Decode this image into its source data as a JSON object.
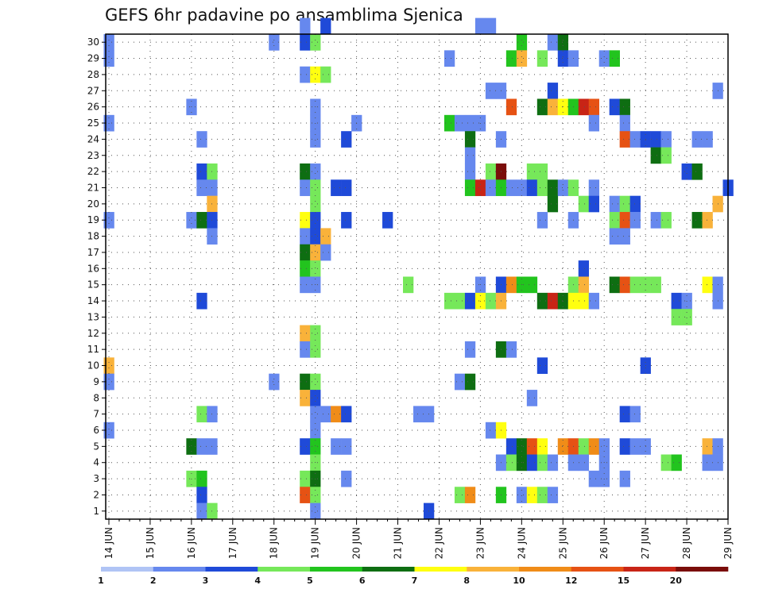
{
  "chart_data": {
    "type": "heatmap",
    "title": "GEFS 6hr padavine po ansamblima Sjenica",
    "xlabel": "",
    "ylabel": "",
    "x_ticks": [
      "14 JUN",
      "15 JUN",
      "16 JUN",
      "17 JUN",
      "18 JUN",
      "19 JUN",
      "20 JUN",
      "21 JUN",
      "22 JUN",
      "23 JUN",
      "24 JUN",
      "25 JUN",
      "26 JUN",
      "27 JUN",
      "28 JUN",
      "29 JUN"
    ],
    "xlim": [
      0,
      60
    ],
    "y_ticks": [
      "1",
      "2",
      "3",
      "4",
      "5",
      "6",
      "7",
      "8",
      "9",
      "10",
      "11",
      "12",
      "13",
      "14",
      "15",
      "16",
      "17",
      "18",
      "19",
      "20",
      "21",
      "22",
      "23",
      "24",
      "25",
      "26",
      "27",
      "28",
      "29",
      "30"
    ],
    "ylim": [
      0.5,
      30.5
    ],
    "grid": true,
    "colorbar": {
      "labels": [
        "1",
        "2",
        "3",
        "4",
        "5",
        "6",
        "7",
        "8",
        "10",
        "12",
        "15",
        "20"
      ],
      "colors": [
        "#b0c4f5",
        "#6688ee",
        "#1f4ad8",
        "#76e85a",
        "#22c41e",
        "#0e6e12",
        "#ffff10",
        "#f9b23a",
        "#f08c18",
        "#e65214",
        "#c82416",
        "#7a0d0a"
      ]
    },
    "cell_format": "[member, step, class]",
    "cells": [
      [
        30,
        19,
        1
      ],
      [
        30,
        21,
        2
      ],
      [
        30,
        36,
        1
      ],
      [
        30,
        37,
        1
      ],
      [
        29,
        0,
        1
      ],
      [
        29,
        16,
        1
      ],
      [
        29,
        19,
        2
      ],
      [
        29,
        20,
        3
      ],
      [
        29,
        40,
        4
      ],
      [
        29,
        43,
        1
      ],
      [
        29,
        44,
        5
      ],
      [
        28,
        0,
        1
      ],
      [
        28,
        33,
        1
      ],
      [
        28,
        39,
        4
      ],
      [
        28,
        40,
        7
      ],
      [
        28,
        42,
        3
      ],
      [
        28,
        44,
        2
      ],
      [
        28,
        45,
        1
      ],
      [
        28,
        48,
        1
      ],
      [
        28,
        49,
        4
      ],
      [
        27,
        19,
        1
      ],
      [
        27,
        20,
        6
      ],
      [
        27,
        21,
        3
      ],
      [
        26,
        37,
        1
      ],
      [
        26,
        38,
        1
      ],
      [
        26,
        43,
        2
      ],
      [
        26,
        59,
        1
      ],
      [
        25,
        8,
        1
      ],
      [
        25,
        20,
        1
      ],
      [
        25,
        39,
        9
      ],
      [
        25,
        42,
        5
      ],
      [
        25,
        43,
        7
      ],
      [
        25,
        44,
        6
      ],
      [
        25,
        45,
        4
      ],
      [
        25,
        46,
        10
      ],
      [
        25,
        47,
        9
      ],
      [
        25,
        49,
        2
      ],
      [
        25,
        50,
        5
      ],
      [
        24,
        0,
        1
      ],
      [
        24,
        20,
        1
      ],
      [
        24,
        24,
        1
      ],
      [
        24,
        33,
        4
      ],
      [
        24,
        34,
        1
      ],
      [
        24,
        35,
        1
      ],
      [
        24,
        36,
        1
      ],
      [
        24,
        47,
        1
      ],
      [
        24,
        50,
        1
      ],
      [
        23,
        9,
        1
      ],
      [
        23,
        20,
        1
      ],
      [
        23,
        23,
        2
      ],
      [
        23,
        35,
        5
      ],
      [
        23,
        38,
        1
      ],
      [
        23,
        50,
        9
      ],
      [
        23,
        51,
        1
      ],
      [
        23,
        52,
        2
      ],
      [
        23,
        53,
        2
      ],
      [
        23,
        54,
        1
      ],
      [
        23,
        57,
        1
      ],
      [
        23,
        58,
        1
      ],
      [
        22,
        35,
        1
      ],
      [
        22,
        53,
        5
      ],
      [
        22,
        54,
        3
      ],
      [
        21,
        9,
        2
      ],
      [
        21,
        10,
        3
      ],
      [
        21,
        19,
        5
      ],
      [
        21,
        20,
        1
      ],
      [
        21,
        35,
        1
      ],
      [
        21,
        37,
        3
      ],
      [
        21,
        38,
        11
      ],
      [
        21,
        41,
        3
      ],
      [
        21,
        42,
        3
      ],
      [
        21,
        56,
        2
      ],
      [
        21,
        57,
        5
      ],
      [
        20,
        9,
        1
      ],
      [
        20,
        10,
        1
      ],
      [
        20,
        19,
        1
      ],
      [
        20,
        20,
        3
      ],
      [
        20,
        22,
        2
      ],
      [
        20,
        23,
        2
      ],
      [
        20,
        35,
        4
      ],
      [
        20,
        36,
        10
      ],
      [
        20,
        37,
        1
      ],
      [
        20,
        38,
        4
      ],
      [
        20,
        39,
        1
      ],
      [
        20,
        40,
        1
      ],
      [
        20,
        41,
        2
      ],
      [
        20,
        42,
        3
      ],
      [
        20,
        43,
        5
      ],
      [
        20,
        44,
        1
      ],
      [
        20,
        45,
        3
      ],
      [
        20,
        47,
        1
      ],
      [
        20,
        60,
        2
      ],
      [
        19,
        10,
        7
      ],
      [
        19,
        20,
        3
      ],
      [
        19,
        43,
        5
      ],
      [
        19,
        46,
        3
      ],
      [
        19,
        47,
        2
      ],
      [
        19,
        49,
        1
      ],
      [
        19,
        50,
        3
      ],
      [
        19,
        51,
        2
      ],
      [
        19,
        59,
        7
      ],
      [
        18,
        0,
        1
      ],
      [
        18,
        8,
        1
      ],
      [
        18,
        9,
        5
      ],
      [
        18,
        10,
        2
      ],
      [
        18,
        19,
        6
      ],
      [
        18,
        20,
        2
      ],
      [
        18,
        23,
        2
      ],
      [
        18,
        27,
        2
      ],
      [
        18,
        42,
        1
      ],
      [
        18,
        45,
        1
      ],
      [
        18,
        49,
        3
      ],
      [
        18,
        50,
        9
      ],
      [
        18,
        51,
        1
      ],
      [
        18,
        53,
        1
      ],
      [
        18,
        54,
        3
      ],
      [
        18,
        57,
        5
      ],
      [
        18,
        58,
        7
      ],
      [
        17,
        10,
        1
      ],
      [
        17,
        19,
        1
      ],
      [
        17,
        20,
        2
      ],
      [
        17,
        21,
        7
      ],
      [
        17,
        49,
        1
      ],
      [
        17,
        50,
        1
      ],
      [
        16,
        19,
        5
      ],
      [
        16,
        20,
        7
      ],
      [
        16,
        21,
        1
      ],
      [
        15,
        19,
        4
      ],
      [
        15,
        20,
        3
      ],
      [
        15,
        46,
        2
      ],
      [
        14,
        19,
        1
      ],
      [
        14,
        20,
        1
      ],
      [
        14,
        29,
        3
      ],
      [
        14,
        36,
        1
      ],
      [
        14,
        38,
        2
      ],
      [
        14,
        39,
        8
      ],
      [
        14,
        40,
        4
      ],
      [
        14,
        41,
        4
      ],
      [
        14,
        45,
        3
      ],
      [
        14,
        46,
        7
      ],
      [
        14,
        49,
        5
      ],
      [
        14,
        50,
        9
      ],
      [
        14,
        51,
        3
      ],
      [
        14,
        52,
        3
      ],
      [
        14,
        53,
        3
      ],
      [
        14,
        58,
        6
      ],
      [
        14,
        59,
        1
      ],
      [
        13,
        9,
        2
      ],
      [
        13,
        33,
        3
      ],
      [
        13,
        34,
        3
      ],
      [
        13,
        35,
        2
      ],
      [
        13,
        36,
        6
      ],
      [
        13,
        37,
        3
      ],
      [
        13,
        38,
        7
      ],
      [
        13,
        42,
        5
      ],
      [
        13,
        43,
        10
      ],
      [
        13,
        44,
        5
      ],
      [
        13,
        45,
        6
      ],
      [
        13,
        46,
        6
      ],
      [
        13,
        47,
        1
      ],
      [
        13,
        55,
        2
      ],
      [
        13,
        56,
        1
      ],
      [
        13,
        59,
        1
      ],
      [
        12,
        55,
        3
      ],
      [
        12,
        56,
        3
      ],
      [
        11,
        19,
        7
      ],
      [
        11,
        20,
        3
      ],
      [
        10,
        19,
        1
      ],
      [
        10,
        20,
        3
      ],
      [
        10,
        35,
        1
      ],
      [
        10,
        38,
        5
      ],
      [
        10,
        39,
        1
      ],
      [
        9,
        0,
        7
      ],
      [
        9,
        42,
        2
      ],
      [
        9,
        52,
        2
      ],
      [
        8,
        0,
        1
      ],
      [
        8,
        16,
        1
      ],
      [
        8,
        19,
        5
      ],
      [
        8,
        20,
        3
      ],
      [
        8,
        34,
        1
      ],
      [
        8,
        35,
        5
      ],
      [
        7,
        19,
        7
      ],
      [
        7,
        20,
        2
      ],
      [
        7,
        41,
        1
      ],
      [
        6,
        9,
        3
      ],
      [
        6,
        10,
        1
      ],
      [
        6,
        20,
        1
      ],
      [
        6,
        21,
        1
      ],
      [
        6,
        22,
        8
      ],
      [
        6,
        23,
        2
      ],
      [
        6,
        30,
        1
      ],
      [
        6,
        31,
        1
      ],
      [
        6,
        50,
        2
      ],
      [
        6,
        51,
        1
      ],
      [
        5,
        0,
        1
      ],
      [
        5,
        20,
        1
      ],
      [
        5,
        37,
        1
      ],
      [
        5,
        38,
        6
      ],
      [
        4,
        8,
        5
      ],
      [
        4,
        9,
        1
      ],
      [
        4,
        10,
        1
      ],
      [
        4,
        19,
        2
      ],
      [
        4,
        20,
        4
      ],
      [
        4,
        22,
        1
      ],
      [
        4,
        23,
        1
      ],
      [
        4,
        39,
        2
      ],
      [
        4,
        40,
        5
      ],
      [
        4,
        41,
        9
      ],
      [
        4,
        42,
        6
      ],
      [
        4,
        44,
        8
      ],
      [
        4,
        45,
        9
      ],
      [
        4,
        46,
        3
      ],
      [
        4,
        47,
        8
      ],
      [
        4,
        48,
        1
      ],
      [
        4,
        50,
        2
      ],
      [
        4,
        51,
        1
      ],
      [
        4,
        52,
        1
      ],
      [
        4,
        58,
        7
      ],
      [
        4,
        59,
        1
      ],
      [
        3,
        20,
        3
      ],
      [
        3,
        38,
        1
      ],
      [
        3,
        39,
        3
      ],
      [
        3,
        40,
        5
      ],
      [
        3,
        41,
        2
      ],
      [
        3,
        42,
        3
      ],
      [
        3,
        43,
        1
      ],
      [
        3,
        45,
        1
      ],
      [
        3,
        46,
        1
      ],
      [
        3,
        48,
        1
      ],
      [
        3,
        54,
        3
      ],
      [
        3,
        55,
        4
      ],
      [
        3,
        58,
        1
      ],
      [
        3,
        59,
        1
      ],
      [
        2,
        8,
        3
      ],
      [
        2,
        9,
        4
      ],
      [
        2,
        19,
        3
      ],
      [
        2,
        20,
        5
      ],
      [
        2,
        23,
        1
      ],
      [
        2,
        47,
        1
      ],
      [
        2,
        48,
        1
      ],
      [
        2,
        50,
        1
      ],
      [
        1,
        9,
        2
      ],
      [
        1,
        19,
        9
      ],
      [
        1,
        20,
        3
      ],
      [
        1,
        34,
        3
      ],
      [
        1,
        35,
        8
      ],
      [
        1,
        38,
        4
      ],
      [
        1,
        40,
        1
      ],
      [
        1,
        41,
        6
      ],
      [
        1,
        42,
        3
      ],
      [
        1,
        43,
        1
      ],
      [
        0,
        9,
        1
      ],
      [
        0,
        10,
        3
      ],
      [
        0,
        20,
        1
      ],
      [
        0,
        31,
        2
      ]
    ]
  }
}
